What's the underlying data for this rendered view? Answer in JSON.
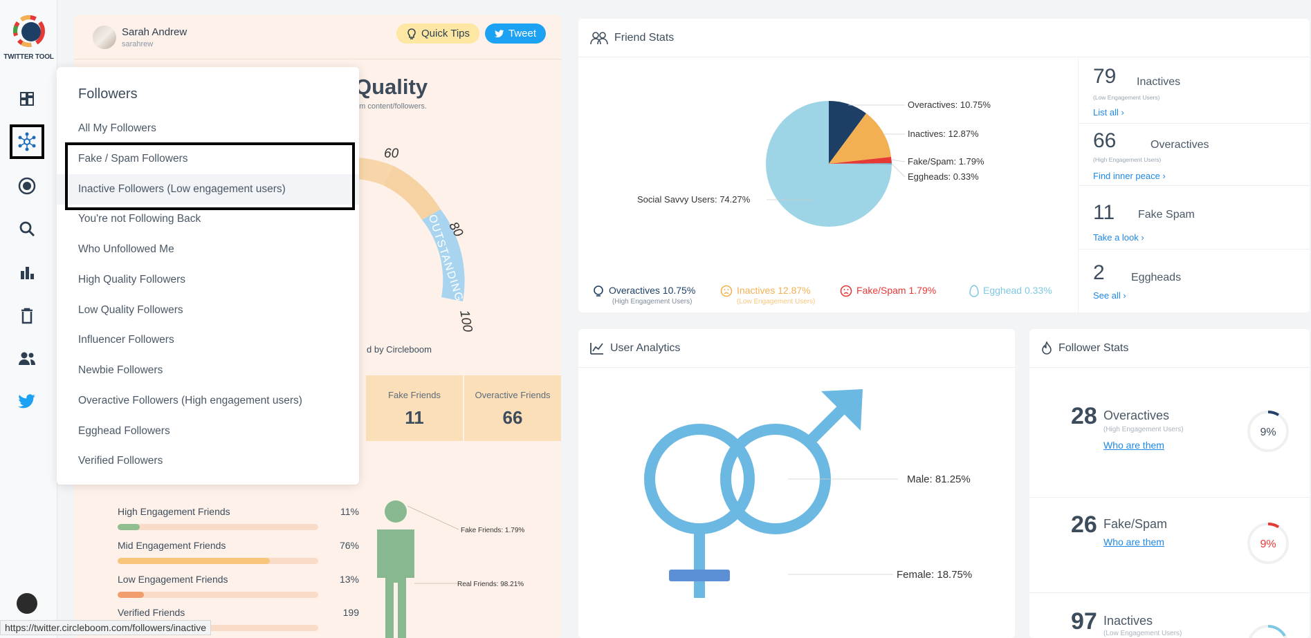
{
  "app": {
    "logo_text": "TWITTER TOOL"
  },
  "user": {
    "name": "Sarah Andrew",
    "handle": "sarahrew"
  },
  "buttons": {
    "quick_tips": "Quick Tips",
    "tweet": "Tweet"
  },
  "quality": {
    "title_partial": "Quality",
    "subtitle_partial": "am content/followers.",
    "powered": "d by Circleboom",
    "gauge": {
      "t60": "60",
      "t80": "80",
      "t100": "100",
      "label": "OUTSTANDING"
    }
  },
  "stats": {
    "fake_label": "Fake Friends",
    "fake_value": "11",
    "overactive_label": "Overactive Friends",
    "overactive_value": "66"
  },
  "engagement": [
    {
      "label": "High Engagement Friends",
      "value": "11%",
      "pct": 11,
      "color": "#8fbf8f"
    },
    {
      "label": "Mid Engagement Friends",
      "value": "76%",
      "pct": 76,
      "color": "#f7c67c"
    },
    {
      "label": "Low Engagement Friends",
      "value": "13%",
      "pct": 13,
      "color": "#f29d6e"
    },
    {
      "label": "Verified Friends",
      "value": "199",
      "pct": 0,
      "color": "#8fbf8f"
    }
  ],
  "human": {
    "fake": "Fake Friends: 1.79%",
    "real": "Real Friends: 98.21%"
  },
  "menu": {
    "title": "Followers",
    "items": [
      "All My Followers",
      "Fake / Spam Followers",
      "Inactive Followers (Low engagement users)",
      "You're not Following Back",
      "Who Unfollowed Me",
      "High Quality Followers",
      "Low Quality Followers",
      "Influencer Followers",
      "Newbie Followers",
      "Overactive Followers (High engagement users)",
      "Egghead Followers",
      "Verified Followers"
    ]
  },
  "friend_stats": {
    "title": "Friend Stats",
    "pie_labels": {
      "overactives": "Overactives: 10.75%",
      "inactives": "Inactives: 12.87%",
      "fake": "Fake/Spam: 1.79%",
      "eggheads": "Eggheads: 0.33%",
      "social": "Social Savvy Users: 74.27%"
    },
    "legend": {
      "overactives": "Overactives 10.75%",
      "overactives_sub": "(High Engagement Users)",
      "inactives": "Inactives 12.87%",
      "inactives_sub": "(Low Engagement Users)",
      "fake": "Fake/Spam 1.79%",
      "egghead": "Egghead 0.33%"
    },
    "rows": [
      {
        "num": "79",
        "label": "Inactives",
        "sub": "(Low Engagement Users)",
        "link": "List all ›"
      },
      {
        "num": "66",
        "label": "Overactives",
        "sub": "(High Engagement Users)",
        "link": "Find inner peace ›"
      },
      {
        "num": "11",
        "label": "Fake Spam",
        "sub": "",
        "link": "Take a look ›"
      },
      {
        "num": "2",
        "label": "Eggheads",
        "sub": "",
        "link": "See all ›"
      }
    ]
  },
  "user_analytics": {
    "title": "User Analytics",
    "male": "Male: 81.25%",
    "female": "Female: 18.75%"
  },
  "follower_stats": {
    "title": "Follower Stats",
    "rows": [
      {
        "num": "28",
        "label": "Overactives",
        "sub": "(High Engagement Users)",
        "link": "Who are them",
        "pct": "9%",
        "color": "#24406b"
      },
      {
        "num": "26",
        "label": "Fake/Spam",
        "sub": "",
        "link": "Who are them",
        "pct": "9%",
        "color": "#e53935"
      },
      {
        "num": "97",
        "label": "Inactives",
        "sub": "(Low Engagement Users)",
        "link": "",
        "pct": "",
        "color": "#7ec8e3"
      }
    ]
  },
  "status_url": "https://twitter.circleboom.com/followers/inactive",
  "colors": {
    "accent": "#1da1f2",
    "navy": "#24406b",
    "orange": "#f2b053",
    "red": "#e53935",
    "sky": "#9dd5e6"
  }
}
